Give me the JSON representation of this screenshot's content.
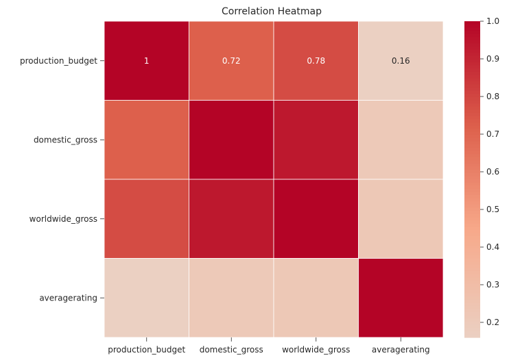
{
  "chart_data": {
    "type": "heatmap",
    "title": "Correlation Heatmap",
    "x_labels": [
      "production_budget",
      "domestic_gross",
      "worldwide_gross",
      "averagerating"
    ],
    "y_labels": [
      "production_budget",
      "domestic_gross",
      "worldwide_gross",
      "averagerating"
    ],
    "values": [
      [
        1.0,
        0.72,
        0.78,
        0.16
      ],
      [
        0.72,
        1.0,
        0.94,
        0.21
      ],
      [
        0.78,
        0.94,
        1.0,
        0.22
      ],
      [
        0.16,
        0.21,
        0.22,
        1.0
      ]
    ],
    "annotations": [
      [
        "1",
        "0.72",
        "0.78",
        "0.16"
      ],
      [
        "",
        "",
        "",
        ""
      ],
      [
        "",
        "",
        "",
        ""
      ],
      [
        "",
        "",
        "",
        ""
      ]
    ],
    "colorbar": {
      "min": 0.16,
      "max": 1.0,
      "ticks": [
        "0.2",
        "0.3",
        "0.4",
        "0.5",
        "0.6",
        "0.7",
        "0.8",
        "0.9",
        "1.0"
      ],
      "tick_values": [
        0.2,
        0.3,
        0.4,
        0.5,
        0.6,
        0.7,
        0.8,
        0.9,
        1.0
      ]
    },
    "colormap": "coolwarm",
    "colors": {
      "stops": [
        "#b40426",
        "#dd604c",
        "#f7a889",
        "#ebd0c2"
      ]
    }
  }
}
